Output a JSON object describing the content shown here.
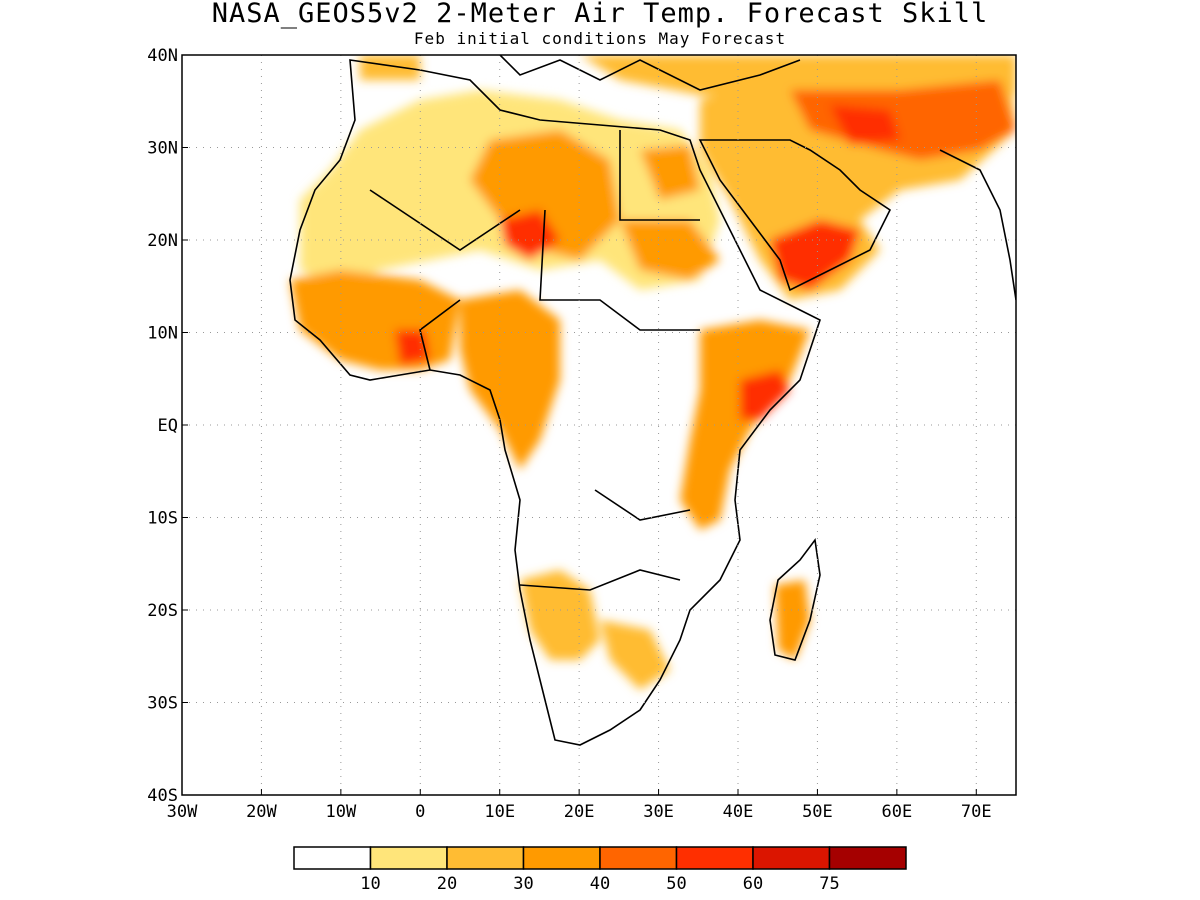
{
  "title": "NASA_GEOS5v2 2-Meter Air Temp. Forecast Skill",
  "subtitle": "Feb initial conditions  May Forecast",
  "map": {
    "lon_range": [
      -30,
      75
    ],
    "lat_range": [
      -40,
      40
    ],
    "lat_ticks": [
      {
        "value": 40,
        "label": "40N"
      },
      {
        "value": 30,
        "label": "30N"
      },
      {
        "value": 20,
        "label": "20N"
      },
      {
        "value": 10,
        "label": "10N"
      },
      {
        "value": 0,
        "label": "EQ"
      },
      {
        "value": -10,
        "label": "10S"
      },
      {
        "value": -20,
        "label": "20S"
      },
      {
        "value": -30,
        "label": "30S"
      },
      {
        "value": -40,
        "label": "40S"
      }
    ],
    "lon_ticks": [
      {
        "value": -30,
        "label": "30W"
      },
      {
        "value": -20,
        "label": "20W"
      },
      {
        "value": -10,
        "label": "10W"
      },
      {
        "value": 0,
        "label": "0"
      },
      {
        "value": 10,
        "label": "10E"
      },
      {
        "value": 20,
        "label": "20E"
      },
      {
        "value": 30,
        "label": "30E"
      },
      {
        "value": 40,
        "label": "40E"
      },
      {
        "value": 50,
        "label": "50E"
      },
      {
        "value": 60,
        "label": "60E"
      },
      {
        "value": 70,
        "label": "70E"
      }
    ],
    "grid": true
  },
  "colorbar": {
    "colors": [
      "#ffffff",
      "#ffe57a",
      "#ffbc33",
      "#ff9a00",
      "#ff6500",
      "#ff2f00",
      "#db1500",
      "#a50000"
    ],
    "labels": [
      "10",
      "20",
      "30",
      "40",
      "50",
      "60",
      "75"
    ]
  }
}
